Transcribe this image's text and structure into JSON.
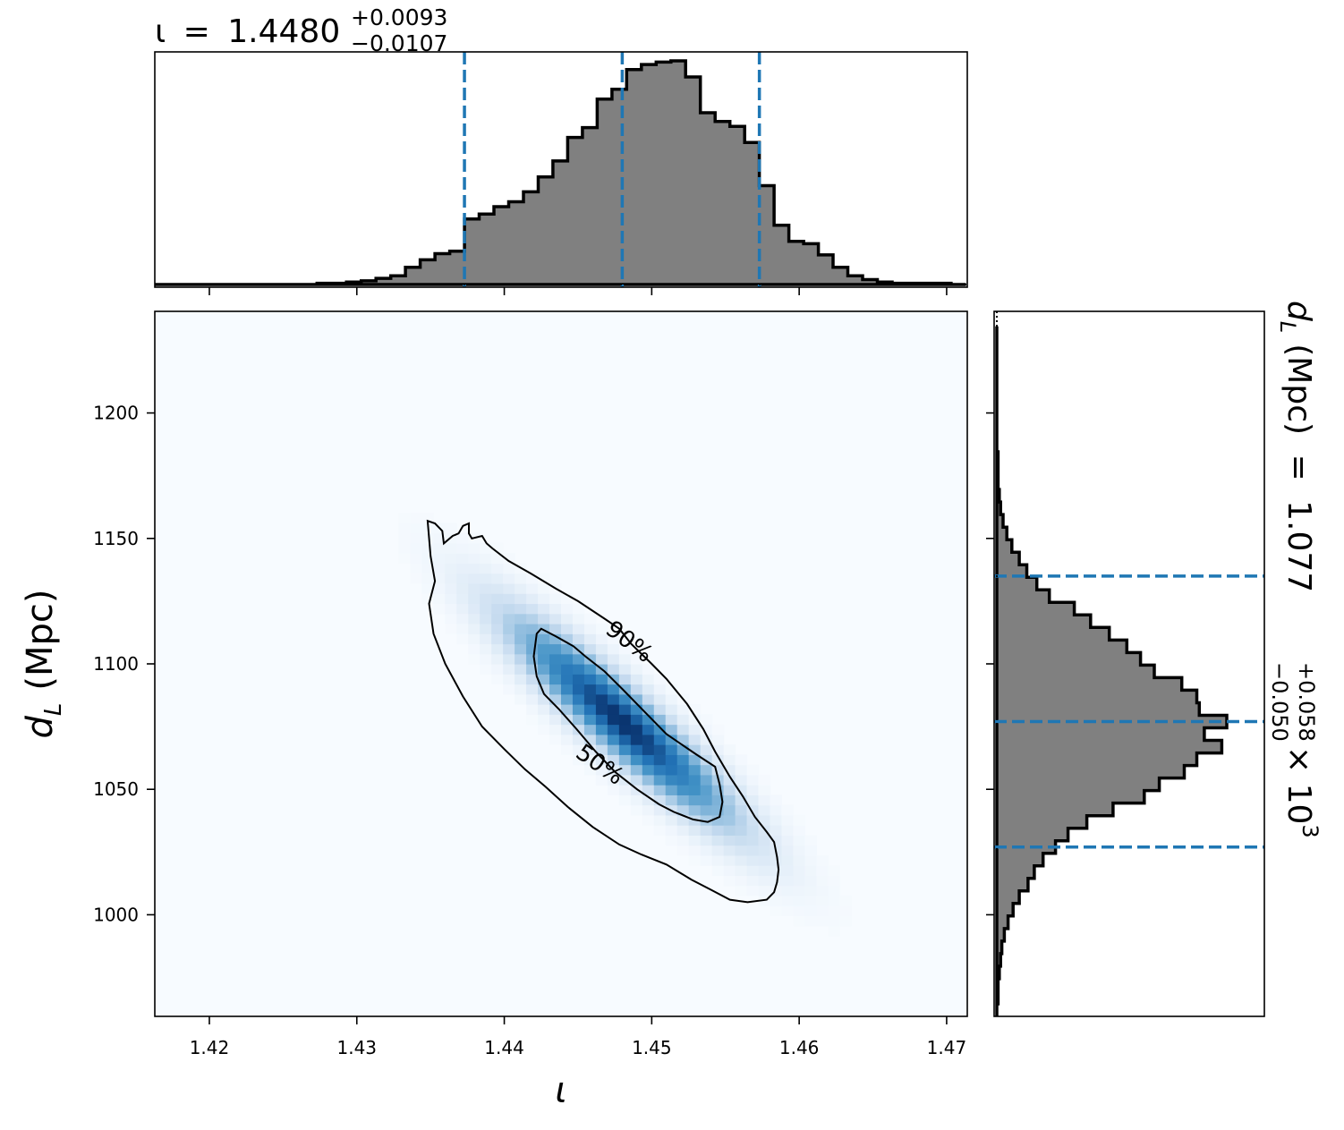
{
  "chart_data": {
    "type": "corner",
    "colors": {
      "hist_fill": "#808080",
      "hist_edge": "#000000",
      "quantile_line": "#1f77b4",
      "density_low": "#f7fbff",
      "density_high": "#08306b",
      "contour": "#000000"
    },
    "top_title": {
      "symbol": "ι",
      "value": "1.4480",
      "plus": "+0.0093",
      "minus": "−0.0107"
    },
    "right_title": {
      "label": "d",
      "subscript": "L",
      "unit": "(Mpc)",
      "value": "1.077",
      "plus": "+0.058",
      "minus": "−0.050",
      "multiplier": "× 10",
      "exponent": "3"
    },
    "xlabel": "ι",
    "ylabel": {
      "symbol": "d",
      "subscript": "L",
      "unit": "(Mpc)"
    },
    "xlim": [
      1.4163,
      1.4714
    ],
    "ylim": [
      959.5,
      1240.5
    ],
    "xticks": [
      1.42,
      1.43,
      1.44,
      1.45,
      1.46,
      1.47
    ],
    "xtick_labels": [
      "1.42",
      "1.43",
      "1.44",
      "1.45",
      "1.46",
      "1.47"
    ],
    "yticks": [
      1000,
      1050,
      1100,
      1150,
      1200
    ],
    "ytick_labels": [
      "1000",
      "1050",
      "1100",
      "1150",
      "1200"
    ],
    "iota_quantiles": [
      1.4373,
      1.448,
      1.4573
    ],
    "dL_quantiles": [
      1027,
      1077,
      1135
    ],
    "iota_hist": {
      "bin_edges": [
        1.4163,
        1.4173,
        1.4183,
        1.4193,
        1.4203,
        1.4213,
        1.4223,
        1.4233,
        1.4243,
        1.4253,
        1.4263,
        1.4273,
        1.4283,
        1.4293,
        1.4303,
        1.4313,
        1.4323,
        1.4333,
        1.4343,
        1.4353,
        1.4363,
        1.4373,
        1.4383,
        1.4393,
        1.4403,
        1.4413,
        1.4423,
        1.4433,
        1.4443,
        1.4453,
        1.4463,
        1.4473,
        1.4483,
        1.4493,
        1.4503,
        1.4513,
        1.4523,
        1.4533,
        1.4543,
        1.4553,
        1.4563,
        1.4573,
        1.4583,
        1.4593,
        1.4603,
        1.4613,
        1.4623,
        1.4633,
        1.4643,
        1.4653,
        1.4663,
        1.4673,
        1.4683,
        1.4693,
        1.4703,
        1.4713
      ],
      "counts": [
        0,
        0,
        0,
        0,
        0,
        0,
        0,
        0,
        0,
        0,
        0,
        1,
        1,
        2,
        3,
        5,
        7,
        14,
        20,
        25,
        27,
        53,
        57,
        63,
        67,
        75,
        87,
        100,
        119,
        127,
        150,
        158,
        174,
        178,
        180,
        181,
        168,
        139,
        132,
        128,
        115,
        80,
        48,
        35,
        33,
        24,
        14,
        7,
        4,
        2,
        1,
        1,
        1,
        1,
        0
      ]
    },
    "dL_hist": {
      "bin_edges": [
        959.5,
        964.5,
        969.5,
        974.5,
        979.5,
        984.5,
        989.5,
        994.5,
        999.5,
        1004.5,
        1009.5,
        1014.5,
        1019.5,
        1024.5,
        1029.5,
        1034.5,
        1039.5,
        1044.5,
        1049.5,
        1054.5,
        1059.5,
        1064.5,
        1069.5,
        1074.5,
        1079.5,
        1084.5,
        1089.5,
        1094.5,
        1099.5,
        1104.5,
        1109.5,
        1114.5,
        1119.5,
        1124.5,
        1129.5,
        1134.5,
        1139.5,
        1144.5,
        1149.5,
        1154.5,
        1159.5,
        1164.5,
        1169.5,
        1174.5,
        1179.5,
        1184.5,
        1189.5,
        1194.5,
        1199.5,
        1204.5,
        1209.5,
        1214.5,
        1219.5,
        1224.5,
        1229.5,
        1234.5
      ],
      "counts": [
        0,
        1,
        1,
        2,
        3,
        4,
        6,
        9,
        13,
        18,
        25,
        30,
        37,
        47,
        57,
        72,
        93,
        118,
        130,
        150,
        160,
        180,
        166,
        184,
        162,
        160,
        148,
        126,
        115,
        104,
        90,
        75,
        62,
        42,
        32,
        24,
        18,
        12,
        8,
        5,
        3,
        2,
        1,
        1,
        1,
        0,
        0,
        0,
        0,
        0,
        0,
        0,
        0,
        0,
        0
      ]
    },
    "contours": [
      {
        "label": "90%",
        "points": [
          [
            1.4348,
            1157
          ],
          [
            1.4353,
            1156
          ],
          [
            1.4358,
            1153
          ],
          [
            1.4359,
            1148
          ],
          [
            1.4365,
            1151
          ],
          [
            1.4369,
            1152
          ],
          [
            1.4372,
            1155
          ],
          [
            1.4376,
            1156
          ],
          [
            1.4376,
            1152
          ],
          [
            1.4378,
            1150
          ],
          [
            1.4385,
            1151
          ],
          [
            1.4388,
            1148
          ],
          [
            1.4392,
            1146
          ],
          [
            1.4403,
            1141
          ],
          [
            1.4418,
            1136
          ],
          [
            1.4435,
            1130
          ],
          [
            1.445,
            1125
          ],
          [
            1.4468,
            1118
          ],
          [
            1.4478,
            1114
          ],
          [
            1.4486,
            1108
          ],
          [
            1.45,
            1100
          ],
          [
            1.451,
            1094
          ],
          [
            1.4524,
            1084
          ],
          [
            1.4535,
            1074
          ],
          [
            1.4543,
            1065
          ],
          [
            1.4553,
            1055
          ],
          [
            1.4562,
            1047
          ],
          [
            1.457,
            1039
          ],
          [
            1.4578,
            1033
          ],
          [
            1.4583,
            1029
          ],
          [
            1.4585,
            1023
          ],
          [
            1.4586,
            1018
          ],
          [
            1.4585,
            1013
          ],
          [
            1.4583,
            1009
          ],
          [
            1.4578,
            1006
          ],
          [
            1.4565,
            1005
          ],
          [
            1.4553,
            1006
          ],
          [
            1.454,
            1010
          ],
          [
            1.4527,
            1014
          ],
          [
            1.451,
            1020
          ],
          [
            1.4493,
            1024
          ],
          [
            1.4478,
            1028
          ],
          [
            1.446,
            1035
          ],
          [
            1.4443,
            1043
          ],
          [
            1.4428,
            1051
          ],
          [
            1.4414,
            1058
          ],
          [
            1.44,
            1066
          ],
          [
            1.4385,
            1075
          ],
          [
            1.4372,
            1087
          ],
          [
            1.436,
            1100
          ],
          [
            1.4352,
            1112
          ],
          [
            1.4349,
            1124
          ],
          [
            1.4353,
            1133
          ],
          [
            1.435,
            1143
          ],
          [
            1.4348,
            1157
          ]
        ]
      },
      {
        "label": "50%",
        "points": [
          [
            1.4422,
            1112
          ],
          [
            1.4425,
            1114
          ],
          [
            1.4435,
            1111
          ],
          [
            1.4447,
            1107
          ],
          [
            1.4455,
            1103
          ],
          [
            1.4468,
            1097
          ],
          [
            1.448,
            1090
          ],
          [
            1.4495,
            1081
          ],
          [
            1.451,
            1072
          ],
          [
            1.453,
            1064
          ],
          [
            1.4543,
            1059
          ],
          [
            1.4546,
            1052
          ],
          [
            1.4548,
            1045
          ],
          [
            1.4546,
            1039
          ],
          [
            1.4538,
            1037
          ],
          [
            1.4528,
            1038
          ],
          [
            1.4515,
            1041
          ],
          [
            1.4505,
            1044
          ],
          [
            1.449,
            1050
          ],
          [
            1.4475,
            1057
          ],
          [
            1.4462,
            1065
          ],
          [
            1.4449,
            1074
          ],
          [
            1.4437,
            1082
          ],
          [
            1.4427,
            1088
          ],
          [
            1.4422,
            1095
          ],
          [
            1.442,
            1103
          ],
          [
            1.4422,
            1112
          ]
        ]
      }
    ],
    "contour_labels": [
      {
        "text": "90%",
        "x": 1.4485,
        "y": 1109,
        "angle": 37
      },
      {
        "text": "50%",
        "x": 1.4465,
        "y": 1060,
        "angle": 35
      }
    ],
    "density": {
      "mean": [
        1.448,
        1077
      ],
      "sigma": [
        0.0051,
        27.5
      ],
      "correlation": -0.92
    }
  }
}
